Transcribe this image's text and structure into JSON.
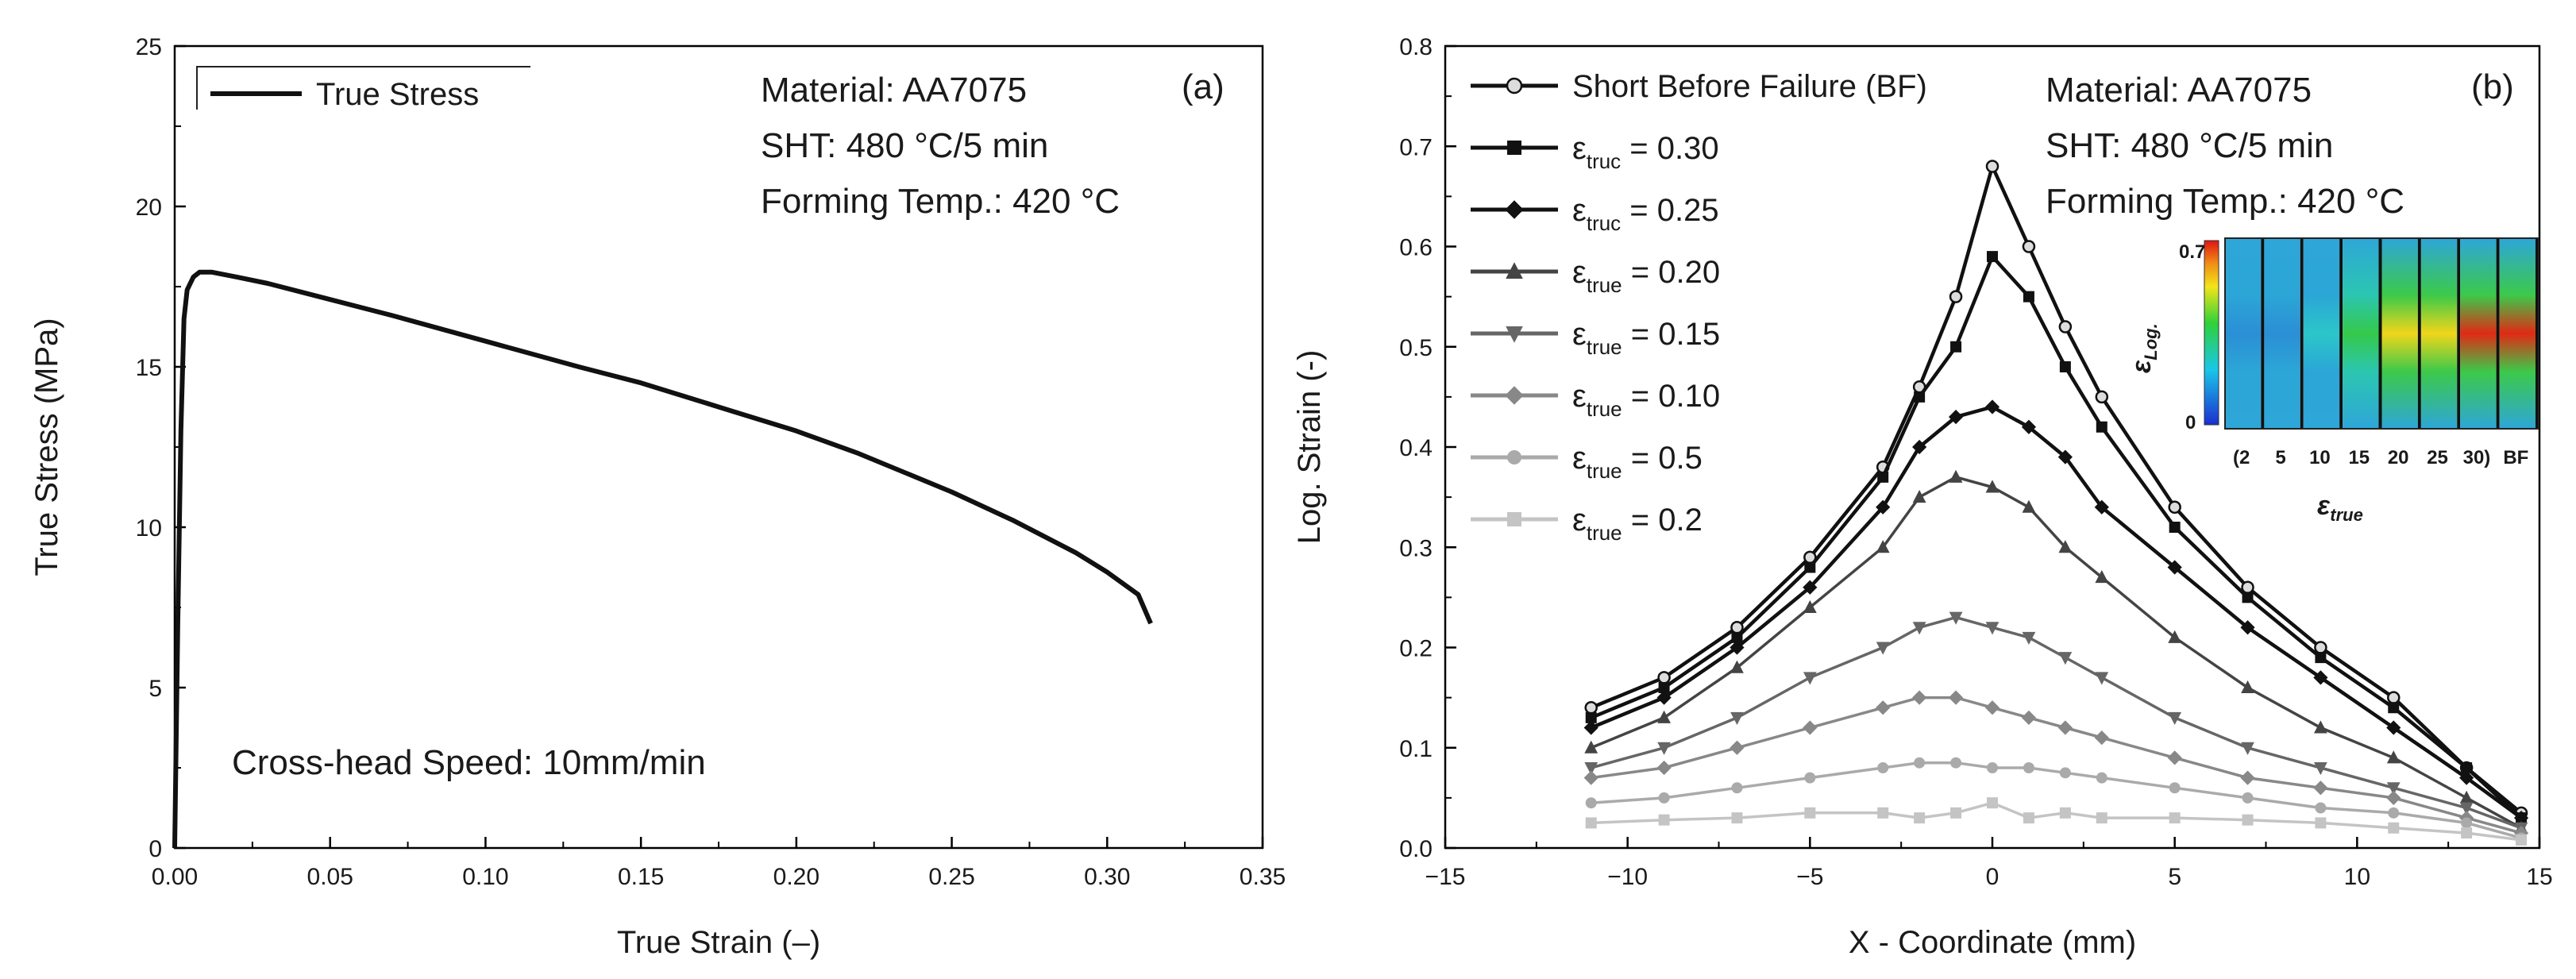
{
  "chart_data": [
    {
      "type": "line",
      "panel_label": "(a)",
      "xlabel": "True Strain (–)",
      "ylabel": "True Stress (MPa)",
      "xlim": [
        0,
        0.35
      ],
      "ylim": [
        0,
        25
      ],
      "xticks": [
        "0.00",
        "0.05",
        "0.10",
        "0.15",
        "0.20",
        "0.25",
        "0.30",
        "0.35"
      ],
      "yticks": [
        "0",
        "5",
        "10",
        "15",
        "20",
        "25"
      ],
      "legend": {
        "position": "top-left",
        "entries": [
          "True Stress"
        ]
      },
      "annotations": {
        "material": "Material: AA7075",
        "sht": "SHT: 480 °C/5 min",
        "forming": "Forming Temp.: 420 °C",
        "speed": "Cross-head Speed: 10mm/min"
      },
      "series": [
        {
          "name": "True Stress",
          "color": "#111111",
          "x": [
            0,
            0.001,
            0.002,
            0.003,
            0.004,
            0.006,
            0.008,
            0.012,
            0.02,
            0.03,
            0.05,
            0.07,
            0.1,
            0.13,
            0.15,
            0.18,
            0.2,
            0.22,
            0.25,
            0.27,
            0.29,
            0.3,
            0.31,
            0.314
          ],
          "y": [
            0,
            7,
            13,
            16.5,
            17.4,
            17.8,
            17.95,
            17.95,
            17.8,
            17.6,
            17.1,
            16.6,
            15.8,
            15.0,
            14.5,
            13.6,
            13.0,
            12.3,
            11.1,
            10.2,
            9.2,
            8.6,
            7.9,
            7.0
          ]
        }
      ]
    },
    {
      "type": "line",
      "panel_label": "(b)",
      "xlabel": "X - Coordinate (mm)",
      "ylabel": "Log. Strain (-)",
      "xlim": [
        -15,
        15
      ],
      "ylim": [
        0,
        0.8
      ],
      "xticks": [
        "−15",
        "−10",
        "−5",
        "0",
        "5",
        "10",
        "15"
      ],
      "yticks": [
        "0.0",
        "0.1",
        "0.2",
        "0.3",
        "0.4",
        "0.5",
        "0.6",
        "0.7",
        "0.8"
      ],
      "legend": {
        "position": "top-left"
      },
      "annotations": {
        "material": "Material: AA7075",
        "sht": "SHT: 480 °C/5 min",
        "forming": "Forming Temp.: 420 °C"
      },
      "series": [
        {
          "name": "Short Before Failure (BF)",
          "marker": "circle-open",
          "color": "#111111",
          "symbol": "",
          "sub": "",
          "rhs": "",
          "x": [
            -11,
            -9,
            -7,
            -5,
            -3,
            -2,
            -1,
            0,
            1,
            2,
            3,
            5,
            7,
            9,
            11,
            13,
            14.5
          ],
          "y": [
            0.14,
            0.17,
            0.22,
            0.29,
            0.38,
            0.46,
            0.55,
            0.68,
            0.6,
            0.52,
            0.45,
            0.34,
            0.26,
            0.2,
            0.15,
            0.08,
            0.035
          ]
        },
        {
          "name": "",
          "symbol": "ε",
          "sub": "truc",
          "rhs": " = 0.30",
          "marker": "square",
          "color": "#111111",
          "x": [
            -11,
            -9,
            -7,
            -5,
            -3,
            -2,
            -1,
            0,
            1,
            2,
            3,
            5,
            7,
            9,
            11,
            13,
            14.5
          ],
          "y": [
            0.13,
            0.16,
            0.21,
            0.28,
            0.37,
            0.45,
            0.5,
            0.59,
            0.55,
            0.48,
            0.42,
            0.32,
            0.25,
            0.19,
            0.14,
            0.08,
            0.03
          ]
        },
        {
          "name": "",
          "symbol": "ε",
          "sub": "truc",
          "rhs": " = 0.25",
          "marker": "diamond",
          "color": "#111111",
          "x": [
            -11,
            -9,
            -7,
            -5,
            -3,
            -2,
            -1,
            0,
            1,
            2,
            3,
            5,
            7,
            9,
            11,
            13,
            14.5
          ],
          "y": [
            0.12,
            0.15,
            0.2,
            0.26,
            0.34,
            0.4,
            0.43,
            0.44,
            0.42,
            0.39,
            0.34,
            0.28,
            0.22,
            0.17,
            0.12,
            0.07,
            0.03
          ]
        },
        {
          "name": "",
          "symbol": "ε",
          "sub": "true",
          "rhs": " = 0.20",
          "marker": "triangle-up",
          "color": "#444444",
          "x": [
            -11,
            -9,
            -7,
            -5,
            -3,
            -2,
            -1,
            0,
            1,
            2,
            3,
            5,
            7,
            9,
            11,
            13,
            14.5
          ],
          "y": [
            0.1,
            0.13,
            0.18,
            0.24,
            0.3,
            0.35,
            0.37,
            0.36,
            0.34,
            0.3,
            0.27,
            0.21,
            0.16,
            0.12,
            0.09,
            0.05,
            0.02
          ]
        },
        {
          "name": "",
          "symbol": "ε",
          "sub": "true",
          "rhs": " = 0.15",
          "marker": "triangle-down",
          "color": "#666666",
          "x": [
            -11,
            -9,
            -7,
            -5,
            -3,
            -2,
            -1,
            0,
            1,
            2,
            3,
            5,
            7,
            9,
            11,
            13,
            14.5
          ],
          "y": [
            0.08,
            0.1,
            0.13,
            0.17,
            0.2,
            0.22,
            0.23,
            0.22,
            0.21,
            0.19,
            0.17,
            0.13,
            0.1,
            0.08,
            0.06,
            0.04,
            0.02
          ]
        },
        {
          "name": "",
          "symbol": "ε",
          "sub": "true",
          "rhs": " = 0.10",
          "marker": "diamond",
          "color": "#888888",
          "x": [
            -11,
            -9,
            -7,
            -5,
            -3,
            -2,
            -1,
            0,
            1,
            2,
            3,
            5,
            7,
            9,
            11,
            13,
            14.5
          ],
          "y": [
            0.07,
            0.08,
            0.1,
            0.12,
            0.14,
            0.15,
            0.15,
            0.14,
            0.13,
            0.12,
            0.11,
            0.09,
            0.07,
            0.06,
            0.05,
            0.03,
            0.015
          ]
        },
        {
          "name": "",
          "symbol": "ε",
          "sub": "true",
          "rhs": " = 0.5",
          "marker": "circle",
          "color": "#aaaaaa",
          "x": [
            -11,
            -9,
            -7,
            -5,
            -3,
            -2,
            -1,
            0,
            1,
            2,
            3,
            5,
            7,
            9,
            11,
            13,
            14.5
          ],
          "y": [
            0.045,
            0.05,
            0.06,
            0.07,
            0.08,
            0.085,
            0.085,
            0.08,
            0.08,
            0.075,
            0.07,
            0.06,
            0.05,
            0.04,
            0.035,
            0.025,
            0.01
          ]
        },
        {
          "name": "",
          "symbol": "ε",
          "sub": "true",
          "rhs": " = 0.2",
          "marker": "square",
          "color": "#c4c4c4",
          "x": [
            -11,
            -9,
            -7,
            -5,
            -3,
            -2,
            -1,
            0,
            1,
            2,
            3,
            5,
            7,
            9,
            11,
            13,
            14.5
          ],
          "y": [
            0.025,
            0.028,
            0.03,
            0.035,
            0.035,
            0.03,
            0.035,
            0.045,
            0.03,
            0.035,
            0.03,
            0.03,
            0.028,
            0.025,
            0.02,
            0.015,
            0.008
          ]
        }
      ],
      "inset": {
        "y_top_label": "0.7",
        "y_bottom_label": "0",
        "y_symbol": "ε",
        "y_sub": "Log.",
        "x_symbol": "ε",
        "x_sub": "true",
        "x_labels": [
          "(2",
          "5",
          "10",
          "15",
          "20",
          "25",
          "30)",
          "BF"
        ],
        "frames": [
          0.05,
          0.1,
          0.2,
          0.35,
          0.5,
          0.65,
          0.8,
          0.95
        ]
      }
    }
  ]
}
